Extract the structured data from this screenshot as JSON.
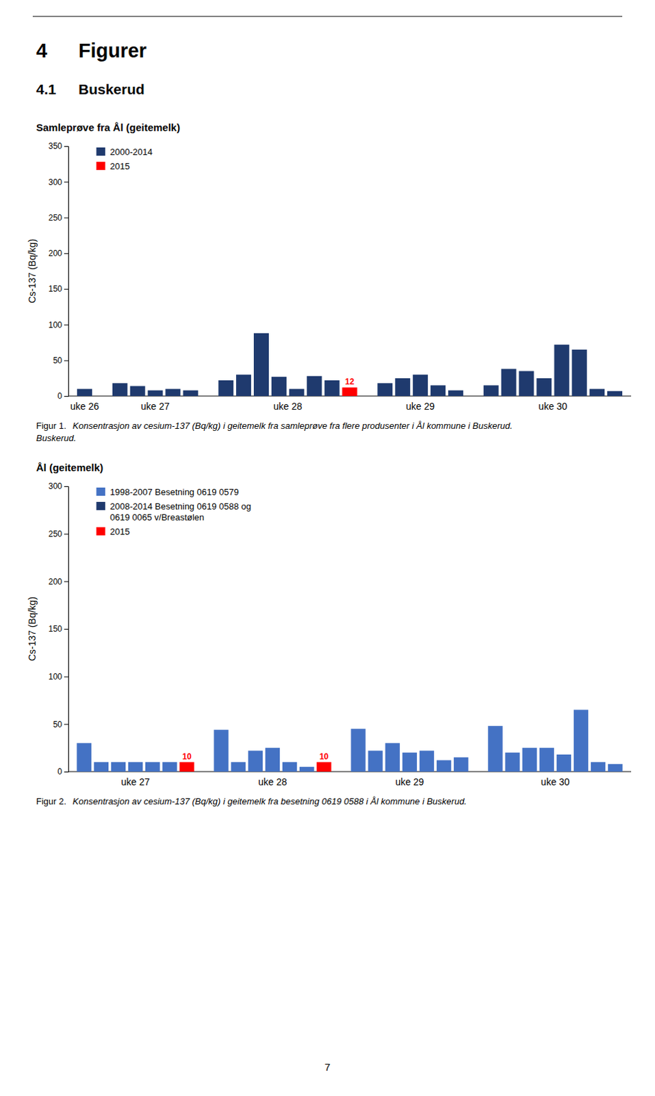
{
  "headers": [
    {
      "number": "4",
      "text": "Figurer"
    },
    {
      "number": "4.1",
      "text": "Buskerud"
    }
  ],
  "chart_data": [
    {
      "type": "bar",
      "title": "Samleprøve fra Ål (geitemelk)",
      "ylabel": "Cs-137 (Bq/kg)",
      "categories": [
        "uke 26",
        "uke 27",
        "uke 28",
        "uke 29",
        "uke 30"
      ],
      "series": [
        {
          "name": "2000-2014",
          "color": "#1F3A6E",
          "values": [
            [
              10
            ],
            [
              18,
              14,
              8,
              10,
              8
            ],
            [
              22,
              30,
              88,
              27,
              10,
              28,
              22
            ],
            [
              18,
              25,
              30,
              15,
              8
            ],
            [
              15,
              38,
              35,
              25,
              72,
              65,
              10,
              7
            ]
          ]
        },
        {
          "name": "2015",
          "color": "#FF0000",
          "data_labels": true,
          "values": [
            null,
            null,
            [
              12
            ],
            null,
            null
          ]
        }
      ],
      "ylim": [
        0,
        350
      ],
      "yticks": [
        0,
        50,
        100,
        150,
        200,
        250,
        300,
        350
      ],
      "grid": false,
      "legend": "upper left"
    },
    {
      "type": "bar",
      "title": "Ål (geitemelk)",
      "ylabel": "Cs-137 (Bq/kg)",
      "categories": [
        "uke 27",
        "uke 28",
        "uke 29",
        "uke 30"
      ],
      "series": [
        {
          "name": "1998-2007 Besetning 0619 0579",
          "color": "#4472C4",
          "values": [
            [
              30,
              10,
              10,
              10,
              10,
              10
            ],
            [
              44,
              10,
              22,
              25,
              10,
              5
            ],
            [
              45,
              22,
              30,
              20,
              22,
              12,
              15
            ],
            [
              48,
              20,
              25,
              25,
              18,
              65,
              10,
              8
            ]
          ]
        },
        {
          "name": "2008-2014 Besetning 0619 0588 og\n0619 0065 v/Breastølen",
          "color": "#1F3A6E",
          "values": [
            null,
            null,
            null,
            null
          ]
        },
        {
          "name": "2015",
          "color": "#FF0000",
          "data_labels": true,
          "values": [
            [
              10
            ],
            [
              10
            ],
            null,
            null
          ]
        }
      ],
      "ylim": [
        0,
        300
      ],
      "yticks": [
        0,
        50,
        100,
        150,
        200,
        250,
        300
      ],
      "grid": false,
      "legend": "upper left"
    }
  ],
  "captions": [
    {
      "label": "Figur 1.",
      "text": " Konsentrasjon av cesium-137 (Bq/kg) i geitemelk fra samleprøve fra flere produsenter i Ål kommune i Buskerud.",
      "continuation": "Buskerud."
    },
    {
      "label": "Figur 2.",
      "text": " Konsentrasjon av cesium-137 (Bq/kg) i geitemelk fra besetning 0619 0588 i Ål kommune i Buskerud."
    }
  ],
  "page_number": "7"
}
